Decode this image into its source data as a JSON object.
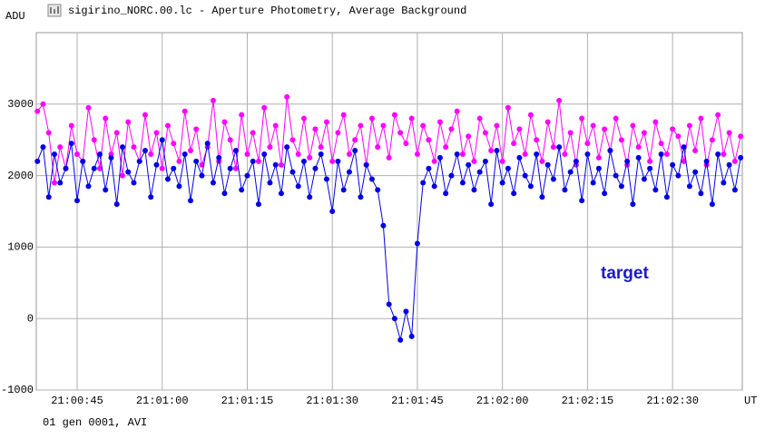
{
  "chart_data": {
    "type": "line",
    "title": "sigirino_NORC.00.lc - Aperture Photometry, Average Background",
    "ylabel": "ADU",
    "xlabel": "UT",
    "footer": "01 gen 0001, AVI",
    "annotation": "target",
    "x": [
      38,
      39,
      40,
      41,
      42,
      43,
      44,
      45,
      46,
      47,
      48,
      49,
      50,
      51,
      52,
      53,
      54,
      55,
      56,
      57,
      58,
      59,
      60,
      61,
      62,
      63,
      64,
      65,
      66,
      67,
      68,
      69,
      70,
      71,
      72,
      73,
      74,
      75,
      76,
      77,
      78,
      79,
      80,
      81,
      82,
      83,
      84,
      85,
      86,
      87,
      88,
      89,
      90,
      91,
      92,
      93,
      94,
      95,
      96,
      97,
      98,
      99,
      100,
      101,
      102,
      103,
      104,
      105,
      106,
      107,
      108,
      109,
      110,
      111,
      112,
      113,
      114,
      115,
      116,
      117,
      118,
      119,
      120,
      121,
      122,
      123,
      124,
      125,
      126,
      127,
      128,
      129,
      130,
      131,
      132,
      133,
      134,
      135,
      136,
      137,
      138,
      139,
      140,
      141,
      142,
      143,
      144,
      145,
      146,
      147,
      148,
      149,
      150,
      151,
      152,
      153,
      154,
      155,
      156,
      157,
      158,
      159,
      160,
      161,
      162
    ],
    "series": [
      {
        "color": "#0000e6",
        "values": [
          2200,
          2400,
          1700,
          2300,
          1900,
          2100,
          2450,
          1650,
          2200,
          1850,
          2100,
          2300,
          1800,
          2250,
          1600,
          2400,
          2050,
          1900,
          2200,
          2350,
          1700,
          2150,
          2500,
          1950,
          2100,
          1850,
          2300,
          1650,
          2200,
          2000,
          2450,
          1900,
          2250,
          1750,
          2100,
          2350,
          1800,
          2000,
          2200,
          1600,
          2300,
          1900,
          2150,
          1750,
          2400,
          2050,
          1850,
          2200,
          1700,
          2100,
          2300,
          1950,
          1500,
          2200,
          1800,
          2050,
          2350,
          1700,
          2150,
          1950,
          1800,
          1300,
          200,
          0,
          -300,
          100,
          -250,
          1050,
          1900,
          2100,
          1850,
          2250,
          1750,
          2000,
          2300,
          1900,
          2150,
          1800,
          2050,
          2200,
          1600,
          2350,
          1900,
          2100,
          1750,
          2250,
          2000,
          1850,
          2300,
          1700,
          2150,
          1950,
          2400,
          1800,
          2050,
          2200,
          1650,
          2300,
          1900,
          2100,
          1750,
          2350,
          2000,
          1850,
          2200,
          1600,
          2250,
          1950,
          2100,
          1800,
          2300,
          1700,
          2150,
          2000,
          2400,
          1850,
          2050,
          1750,
          2200,
          1600,
          2300,
          1900,
          2150,
          1800,
          2250
        ]
      },
      {
        "color": "#ff00ff",
        "values": [
          2900,
          3000,
          2600,
          1900,
          2400,
          2100,
          2700,
          2300,
          2200,
          2950,
          2500,
          2100,
          2800,
          2300,
          2600,
          2000,
          2750,
          2400,
          2200,
          2850,
          2300,
          2600,
          2100,
          2700,
          2450,
          2200,
          2900,
          2350,
          2650,
          2150,
          2400,
          3050,
          2200,
          2750,
          2500,
          2100,
          2850,
          2300,
          2600,
          2200,
          2950,
          2400,
          2700,
          2150,
          3100,
          2500,
          2300,
          2800,
          2250,
          2650,
          2400,
          2750,
          2200,
          2600,
          2850,
          2300,
          2500,
          2700,
          2150,
          2800,
          2400,
          2700,
          2250,
          2850,
          2600,
          2450,
          2800,
          2300,
          2700,
          2500,
          2200,
          2750,
          2400,
          2650,
          2900,
          2300,
          2550,
          2200,
          2800,
          2600,
          2350,
          2700,
          2200,
          2950,
          2450,
          2650,
          2300,
          2850,
          2500,
          2200,
          2750,
          2400,
          3050,
          2300,
          2600,
          2150,
          2800,
          2450,
          2700,
          2250,
          2650,
          2350,
          2800,
          2500,
          2150,
          2700,
          2400,
          2600,
          2200,
          2750,
          2450,
          2300,
          2650,
          2550,
          2200,
          2700,
          2350,
          2800,
          2150,
          2500,
          2850,
          2300,
          2600,
          2200,
          2550
        ]
      }
    ],
    "xlim": [
      37.8,
      162.3
    ],
    "xticks": [
      {
        "value": 45,
        "label": "21:00:45"
      },
      {
        "value": 60,
        "label": "21:01:00"
      },
      {
        "value": 75,
        "label": "21:01:15"
      },
      {
        "value": 90,
        "label": "21:01:30"
      },
      {
        "value": 105,
        "label": "21:01:45"
      },
      {
        "value": 120,
        "label": "21:02:00"
      },
      {
        "value": 135,
        "label": "21:02:15"
      },
      {
        "value": 150,
        "label": "21:02:30"
      }
    ],
    "ylim": [
      -1000,
      4000
    ],
    "yticks": [
      -1000,
      0,
      1000,
      2000,
      3000
    ],
    "grid": true
  }
}
